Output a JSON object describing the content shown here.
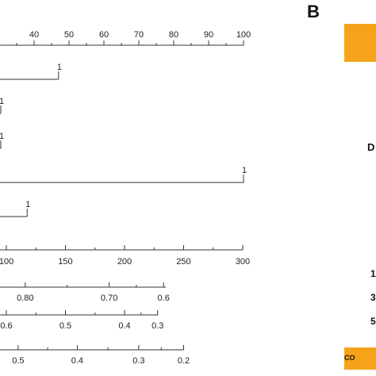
{
  "panel_b": {
    "letter": "B",
    "fragments": [
      "D",
      "1",
      "3",
      "5"
    ],
    "footer_text": "CO"
  },
  "colors": {
    "accent": "#f5a41a",
    "line": "#333333"
  },
  "chart_data": {
    "type": "nomogram",
    "title": "",
    "rows": [
      {
        "role": "points",
        "axis": {
          "min": 0,
          "max": 100,
          "ticks": [
            40,
            50,
            60,
            70,
            80,
            90,
            100
          ]
        }
      },
      {
        "role": "predictor",
        "points_at": 0,
        "points_at_1": 47,
        "label": "1"
      },
      {
        "role": "predictor",
        "points_at": 0,
        "points_at_1": 10,
        "label": "1"
      },
      {
        "role": "predictor",
        "points_at": 0,
        "points_at_1": 0,
        "label": "1"
      },
      {
        "role": "predictor",
        "points_at": 0,
        "points_at_1": 100,
        "label": "1"
      },
      {
        "role": "predictor",
        "points_at": 0,
        "points_at_1": 38,
        "label": "1"
      },
      {
        "role": "total_points",
        "axis": {
          "min": 100,
          "max": 300,
          "ticks": [
            100,
            150,
            200,
            250,
            300
          ]
        }
      },
      {
        "role": "probability",
        "tick_values": [
          "0.80",
          "0.70",
          "0.6"
        ],
        "tick_total_points": [
          116,
          187,
          233
        ],
        "extends_to": 235
      },
      {
        "role": "probability",
        "tick_values": [
          "0.6",
          "0.5",
          "0.4",
          "0.3"
        ],
        "tick_total_points": [
          100,
          150,
          200,
          228
        ]
      },
      {
        "role": "probability",
        "tick_values": [
          "0.5",
          "0.4",
          "0.3",
          "0.2"
        ],
        "tick_total_points": [
          110,
          160,
          212,
          250
        ]
      }
    ]
  }
}
